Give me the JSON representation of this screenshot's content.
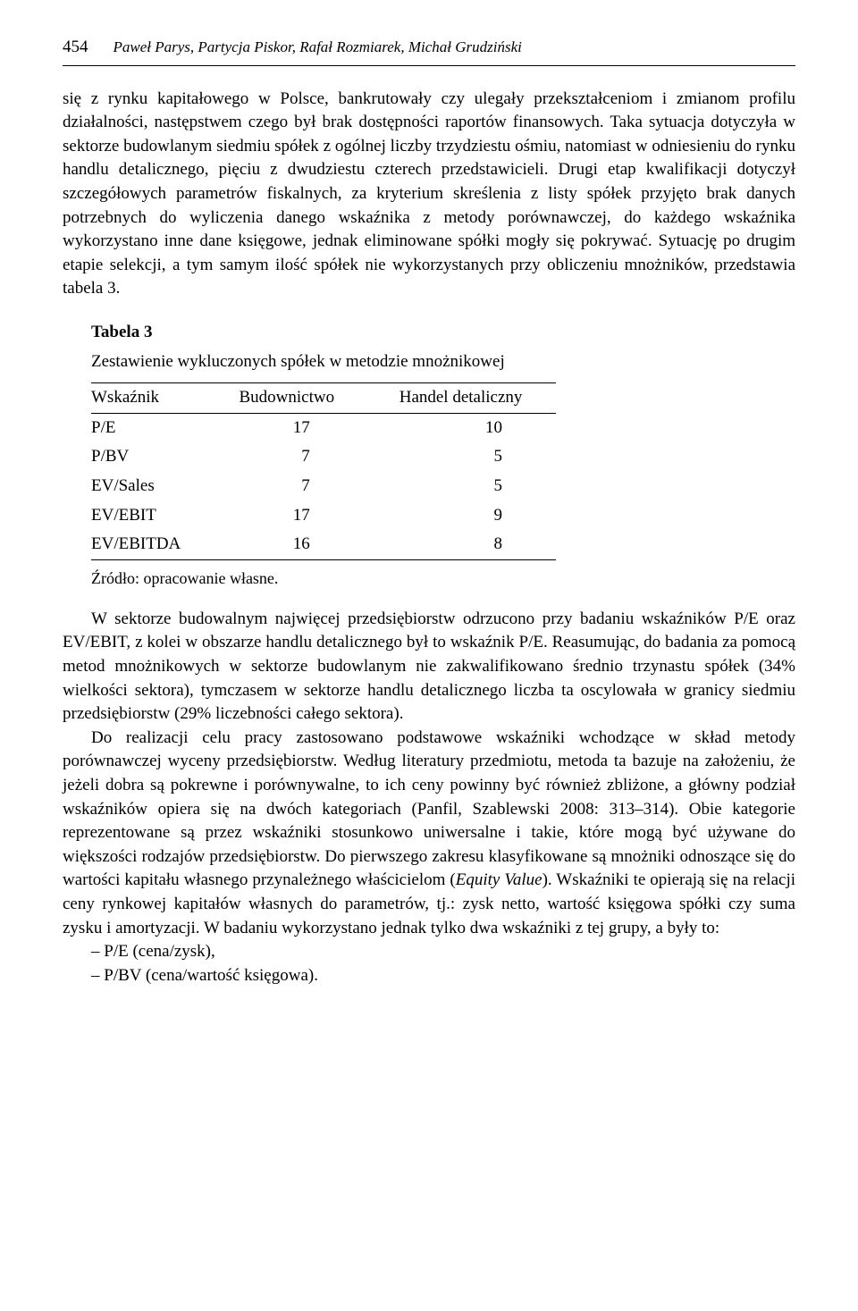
{
  "header": {
    "page_number": "454",
    "authors": "Paweł Parys, Partycja Piskor, Rafał Rozmiarek, Michał Grudziński"
  },
  "paragraphs": {
    "p1": "się z rynku kapitałowego w Polsce, bankrutowały czy ulegały przekształceniom i zmianom profilu działalności, następstwem czego był brak dostępności raportów finansowych. Taka sytuacja dotyczyła w sektorze budowlanym siedmiu spółek z ogólnej liczby trzydziestu ośmiu, natomiast w odniesieniu do rynku handlu detalicznego, pięciu z dwudziestu czterech przedstawicieli. Drugi etap kwalifikacji dotyczył szczegółowych parametrów fiskalnych, za kryterium skreślenia z listy spółek przyjęto brak danych potrzebnych do wyliczenia danego wskaźnika z metody porównawczej, do każdego wskaźnika wykorzystano inne dane księgowe, jednak eliminowane spółki mogły się pokrywać. Sytuację po drugim etapie selekcji, a tym samym ilość spółek nie wykorzystanych przy obliczeniu mnożników, przedstawia tabela 3.",
    "p2": "W sektorze budowalnym najwięcej przedsiębiorstw odrzucono przy badaniu wskaźników P/E oraz EV/EBIT, z kolei w obszarze handlu detalicznego był to wskaźnik P/E. Reasumując, do badania za pomocą metod mnożnikowych w sektorze budowlanym nie zakwalifikowano średnio trzynastu spółek (34% wielkości sektora), tymczasem w sektorze handlu detalicznego liczba ta oscylowała w granicy siedmiu przedsiębiorstw (29% liczebności całego sektora).",
    "p3_a": "Do realizacji celu pracy zastosowano podstawowe wskaźniki wchodzące w skład metody porównawczej wyceny przedsiębiorstw. Według literatury przedmiotu, metoda ta bazuje na założeniu, że jeżeli dobra są pokrewne i porównywalne, to ich ceny powinny być również zbliżone, a główny podział wskaźników opiera się na dwóch kategoriach (Panfil, Szablewski 2008: 313–314). Obie kategorie reprezentowane są przez wskaźniki stosunkowo uniwersalne i takie, które mogą być używane do większości rodzajów przedsiębiorstw. Do pierwszego zakresu klasyfikowane są mnożniki odnoszące się do wartości kapitału własnego przynależnego właścicielom (",
    "p3_em": "Equity Value",
    "p3_b": "). Wskaźniki te opierają się na relacji ceny rynkowej kapitałów własnych do parametrów, tj.: zysk netto, wartość księgowa spółki czy suma zysku i amortyzacji. W badaniu wykorzystano jednak tylko dwa wskaźniki z tej grupy, a były to:",
    "li1": "– P/E (cena/zysk),",
    "li2": "– P/BV (cena/wartość księgowa)."
  },
  "table": {
    "label": "Tabela 3",
    "caption": "Zestawienie wykluczonych spółek w metodzie mnożnikowej",
    "columns": [
      "Wskaźnik",
      "Budownictwo",
      "Handel detaliczny"
    ],
    "rows": [
      [
        "P/E",
        "17",
        "10"
      ],
      [
        "P/BV",
        "7",
        "5"
      ],
      [
        "EV/Sales",
        "7",
        "5"
      ],
      [
        "EV/EBIT",
        "17",
        "9"
      ],
      [
        "EV/EBITDA",
        "16",
        "8"
      ]
    ],
    "source": "Źródło: opracowanie własne."
  }
}
